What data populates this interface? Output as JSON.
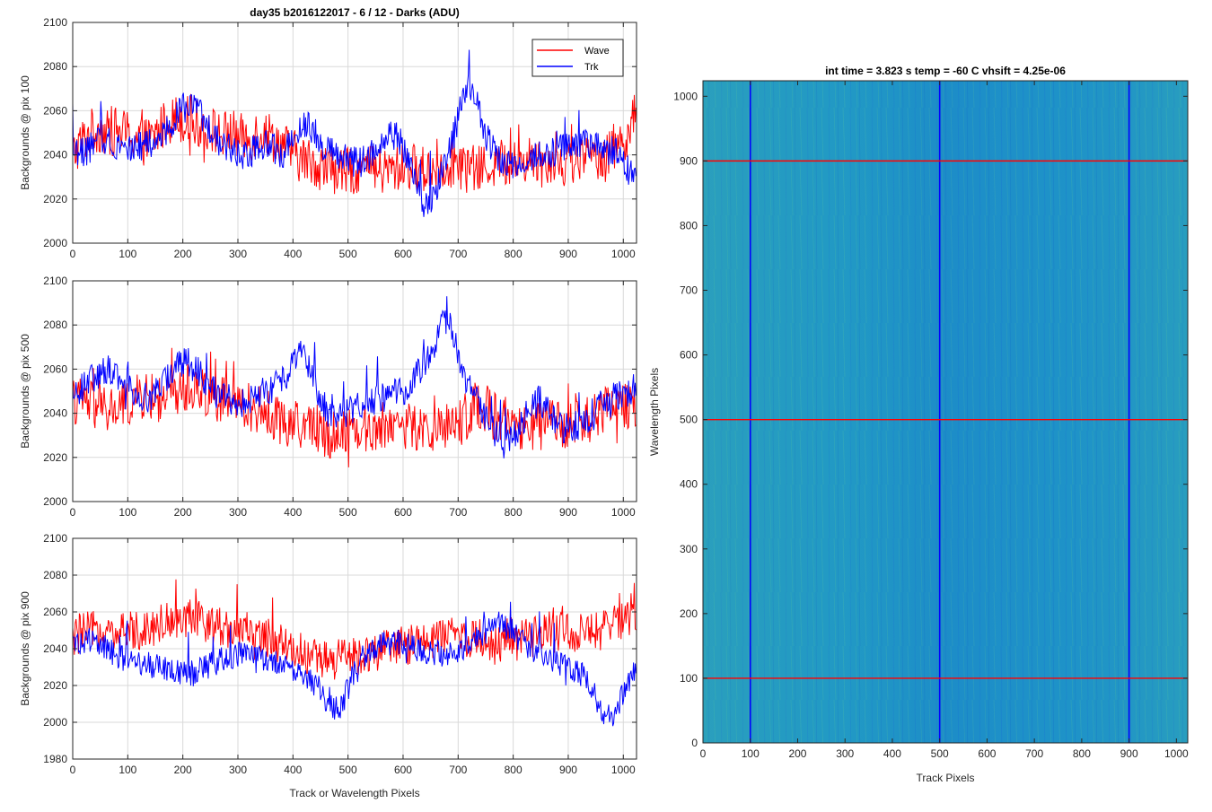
{
  "figure": {
    "title": "day35 b2016122017 - 6 / 12 - Darks (ADU)",
    "colors": {
      "wave": "#ff0000",
      "trk": "#0000ff",
      "grid": "#d9d9d9",
      "axis": "#262626"
    }
  },
  "chart_data": [
    {
      "type": "line",
      "title": "day35 b2016122017 - 6 / 12 - Darks (ADU)",
      "xlabel": "",
      "ylabel": "Backgrounds @ pix 100",
      "xlim": [
        0,
        1024
      ],
      "ylim": [
        2000,
        2100
      ],
      "xticks": [
        0,
        100,
        200,
        300,
        400,
        500,
        600,
        700,
        800,
        900,
        1000
      ],
      "yticks": [
        2000,
        2020,
        2040,
        2060,
        2080,
        2100
      ],
      "grid": true,
      "legend": "top-right",
      "series": [
        {
          "name": "Wave",
          "color": "#ff0000",
          "x": [
            0,
            16,
            32,
            48,
            64,
            80,
            96,
            112,
            128,
            144,
            160,
            176,
            192,
            208,
            224,
            240,
            256,
            272,
            288,
            304,
            320,
            336,
            352,
            368,
            384,
            400,
            416,
            432,
            448,
            464,
            480,
            496,
            512,
            528,
            544,
            560,
            576,
            592,
            608,
            624,
            640,
            656,
            672,
            688,
            704,
            720,
            736,
            752,
            768,
            784,
            800,
            816,
            832,
            848,
            864,
            880,
            896,
            912,
            928,
            944,
            960,
            976,
            992,
            1008,
            1023
          ],
          "y": [
            2040,
            2046,
            2050,
            2052,
            2049,
            2051,
            2050,
            2048,
            2046,
            2047,
            2052,
            2056,
            2057,
            2056,
            2054,
            2053,
            2051,
            2049,
            2050,
            2048,
            2047,
            2051,
            2050,
            2047,
            2044,
            2041,
            2038,
            2037,
            2035,
            2034,
            2033,
            2032,
            2033,
            2034,
            2033,
            2032,
            2033,
            2034,
            2035,
            2034,
            2033,
            2034,
            2035,
            2036,
            2035,
            2034,
            2033,
            2035,
            2036,
            2037,
            2036,
            2037,
            2038,
            2039,
            2038,
            2037,
            2036,
            2037,
            2038,
            2039,
            2040,
            2042,
            2045,
            2050,
            2058
          ]
        },
        {
          "name": "Trk",
          "color": "#0000ff",
          "x": [
            0,
            16,
            32,
            48,
            64,
            80,
            96,
            112,
            128,
            144,
            160,
            176,
            192,
            208,
            224,
            240,
            256,
            272,
            288,
            304,
            320,
            336,
            352,
            368,
            384,
            400,
            416,
            432,
            448,
            464,
            480,
            496,
            512,
            528,
            544,
            560,
            576,
            592,
            608,
            624,
            640,
            656,
            672,
            688,
            704,
            720,
            736,
            752,
            768,
            784,
            800,
            816,
            832,
            848,
            864,
            880,
            896,
            912,
            928,
            944,
            960,
            976,
            992,
            1008,
            1023
          ],
          "y": [
            2040,
            2041,
            2043,
            2046,
            2047,
            2045,
            2044,
            2043,
            2044,
            2045,
            2047,
            2053,
            2060,
            2062,
            2061,
            2055,
            2048,
            2045,
            2042,
            2040,
            2041,
            2043,
            2045,
            2042,
            2040,
            2048,
            2055,
            2052,
            2046,
            2042,
            2040,
            2038,
            2037,
            2036,
            2041,
            2046,
            2050,
            2048,
            2040,
            2025,
            2015,
            2022,
            2035,
            2045,
            2060,
            2072,
            2062,
            2048,
            2040,
            2036,
            2035,
            2036,
            2038,
            2040,
            2041,
            2042,
            2044,
            2046,
            2045,
            2044,
            2043,
            2042,
            2040,
            2033,
            2030
          ]
        }
      ]
    },
    {
      "type": "line",
      "title": "",
      "xlabel": "",
      "ylabel": "Backgrounds @ pix 500",
      "xlim": [
        0,
        1024
      ],
      "ylim": [
        2000,
        2100
      ],
      "xticks": [
        0,
        100,
        200,
        300,
        400,
        500,
        600,
        700,
        800,
        900,
        1000
      ],
      "yticks": [
        2000,
        2020,
        2040,
        2060,
        2080,
        2100
      ],
      "grid": true,
      "series": [
        {
          "name": "Wave",
          "color": "#ff0000",
          "x": [
            0,
            16,
            32,
            48,
            64,
            80,
            96,
            112,
            128,
            144,
            160,
            176,
            192,
            208,
            224,
            240,
            256,
            272,
            288,
            304,
            320,
            336,
            352,
            368,
            384,
            400,
            416,
            432,
            448,
            464,
            480,
            496,
            512,
            528,
            544,
            560,
            576,
            592,
            608,
            624,
            640,
            656,
            672,
            688,
            704,
            720,
            736,
            752,
            768,
            784,
            800,
            816,
            832,
            848,
            864,
            880,
            896,
            912,
            928,
            944,
            960,
            976,
            992,
            1008,
            1023
          ],
          "y": [
            2045,
            2046,
            2044,
            2042,
            2041,
            2042,
            2044,
            2046,
            2048,
            2047,
            2046,
            2048,
            2050,
            2052,
            2051,
            2050,
            2048,
            2046,
            2045,
            2044,
            2043,
            2042,
            2040,
            2038,
            2036,
            2035,
            2034,
            2035,
            2033,
            2030,
            2031,
            2033,
            2034,
            2033,
            2032,
            2034,
            2036,
            2035,
            2034,
            2033,
            2032,
            2033,
            2034,
            2035,
            2036,
            2040,
            2045,
            2042,
            2038,
            2035,
            2033,
            2032,
            2033,
            2034,
            2035,
            2036,
            2035,
            2034,
            2036,
            2038,
            2040,
            2042,
            2043,
            2044,
            2045
          ]
        },
        {
          "name": "Trk",
          "color": "#0000ff",
          "x": [
            0,
            16,
            32,
            48,
            64,
            80,
            96,
            112,
            128,
            144,
            160,
            176,
            192,
            208,
            224,
            240,
            256,
            272,
            288,
            304,
            320,
            336,
            352,
            368,
            384,
            400,
            416,
            432,
            448,
            464,
            480,
            496,
            512,
            528,
            544,
            560,
            576,
            592,
            608,
            624,
            640,
            656,
            672,
            688,
            704,
            720,
            736,
            752,
            768,
            784,
            800,
            816,
            832,
            848,
            864,
            880,
            896,
            912,
            928,
            944,
            960,
            976,
            992,
            1008,
            1023
          ],
          "y": [
            2048,
            2052,
            2055,
            2058,
            2060,
            2058,
            2054,
            2050,
            2048,
            2047,
            2052,
            2058,
            2062,
            2063,
            2060,
            2055,
            2050,
            2047,
            2046,
            2045,
            2046,
            2048,
            2050,
            2052,
            2055,
            2066,
            2070,
            2060,
            2048,
            2040,
            2038,
            2040,
            2043,
            2045,
            2046,
            2047,
            2048,
            2049,
            2052,
            2058,
            2062,
            2070,
            2085,
            2078,
            2062,
            2052,
            2045,
            2038,
            2030,
            2025,
            2030,
            2036,
            2042,
            2046,
            2040,
            2035,
            2033,
            2034,
            2036,
            2040,
            2044,
            2046,
            2048,
            2050,
            2052
          ]
        }
      ]
    },
    {
      "type": "line",
      "title": "",
      "xlabel": "Track or Wavelength Pixels",
      "ylabel": "Backgrounds @ pix 900",
      "xlim": [
        0,
        1024
      ],
      "ylim": [
        1980,
        2100
      ],
      "xticks": [
        0,
        100,
        200,
        300,
        400,
        500,
        600,
        700,
        800,
        900,
        1000
      ],
      "yticks": [
        1980,
        2000,
        2020,
        2040,
        2060,
        2080,
        2100
      ],
      "grid": true,
      "series": [
        {
          "name": "Wave",
          "color": "#ff0000",
          "x": [
            0,
            16,
            32,
            48,
            64,
            80,
            96,
            112,
            128,
            144,
            160,
            176,
            192,
            208,
            224,
            240,
            256,
            272,
            288,
            304,
            320,
            336,
            352,
            368,
            384,
            400,
            416,
            432,
            448,
            464,
            480,
            496,
            512,
            528,
            544,
            560,
            576,
            592,
            608,
            624,
            640,
            656,
            672,
            688,
            704,
            720,
            736,
            752,
            768,
            784,
            800,
            816,
            832,
            848,
            864,
            880,
            896,
            912,
            928,
            944,
            960,
            976,
            992,
            1008,
            1023
          ],
          "y": [
            2045,
            2048,
            2050,
            2049,
            2048,
            2047,
            2049,
            2050,
            2051,
            2052,
            2054,
            2056,
            2057,
            2056,
            2055,
            2054,
            2053,
            2052,
            2051,
            2050,
            2049,
            2048,
            2046,
            2044,
            2042,
            2040,
            2038,
            2036,
            2034,
            2033,
            2034,
            2035,
            2036,
            2037,
            2038,
            2039,
            2040,
            2041,
            2042,
            2043,
            2044,
            2045,
            2046,
            2047,
            2048,
            2046,
            2044,
            2043,
            2042,
            2043,
            2044,
            2045,
            2046,
            2047,
            2048,
            2049,
            2050,
            2049,
            2048,
            2049,
            2050,
            2052,
            2054,
            2055,
            2056
          ]
        },
        {
          "name": "Trk",
          "color": "#0000ff",
          "x": [
            0,
            16,
            32,
            48,
            64,
            80,
            96,
            112,
            128,
            144,
            160,
            176,
            192,
            208,
            224,
            240,
            256,
            272,
            288,
            304,
            320,
            336,
            352,
            368,
            384,
            400,
            416,
            432,
            448,
            464,
            480,
            496,
            512,
            528,
            544,
            560,
            576,
            592,
            608,
            624,
            640,
            656,
            672,
            688,
            704,
            720,
            736,
            752,
            768,
            784,
            800,
            816,
            832,
            848,
            864,
            880,
            896,
            912,
            928,
            944,
            960,
            976,
            992,
            1008,
            1023
          ],
          "y": [
            2042,
            2044,
            2045,
            2043,
            2040,
            2036,
            2034,
            2033,
            2032,
            2031,
            2030,
            2028,
            2027,
            2026,
            2028,
            2030,
            2032,
            2034,
            2036,
            2037,
            2036,
            2035,
            2034,
            2032,
            2030,
            2028,
            2025,
            2022,
            2018,
            2010,
            2005,
            2015,
            2028,
            2036,
            2040,
            2042,
            2043,
            2044,
            2043,
            2040,
            2038,
            2037,
            2036,
            2038,
            2040,
            2043,
            2046,
            2050,
            2054,
            2052,
            2048,
            2044,
            2040,
            2037,
            2034,
            2032,
            2030,
            2028,
            2025,
            2018,
            2006,
            2002,
            2010,
            2020,
            2028
          ]
        }
      ]
    },
    {
      "type": "heatmap",
      "title": "int time = 3.823 s   temp = -60 C   vhsift = 4.25e-06",
      "xlabel": "Track Pixels",
      "ylabel": "Wavelength Pixels",
      "xlim": [
        0,
        1024
      ],
      "ylim": [
        0,
        1024
      ],
      "xticks": [
        0,
        100,
        200,
        300,
        400,
        500,
        600,
        700,
        800,
        900,
        1000
      ],
      "yticks": [
        0,
        100,
        200,
        300,
        400,
        500,
        600,
        700,
        800,
        900,
        1000
      ],
      "colormap": "parula",
      "vertical_lines": {
        "x": [
          100,
          500,
          900
        ],
        "color": "#0000ff"
      },
      "horizontal_lines": {
        "y": [
          100,
          500,
          900
        ],
        "color": "#ff0000"
      },
      "base_color": "#1f96c8"
    }
  ]
}
